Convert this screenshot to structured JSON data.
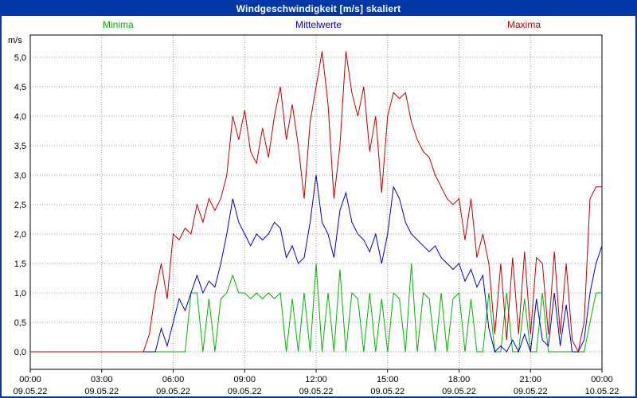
{
  "window": {
    "title": "Windgeschwindigkeit [m/s] skaliert"
  },
  "colors": {
    "frame_blue": "#0039a6",
    "titlebar_bg": "#0039a6",
    "title_text": "#ffffff",
    "grid": "#999999",
    "axis": "#000000",
    "minima": "#00b400",
    "mittelwerte": "#0000c8",
    "maxima": "#c00000"
  },
  "chart_data": {
    "type": "line",
    "title": "Windgeschwindigkeit [m/s] skaliert",
    "ylabel": "m/s",
    "xlabel": "",
    "ylim": [
      0,
      5.4
    ],
    "xlim_hours": [
      0,
      24
    ],
    "grid": true,
    "legend_position": "top",
    "x_step_hours": 0.25,
    "y_ticks": [
      {
        "v": 0.0,
        "label": "0,0"
      },
      {
        "v": 0.5,
        "label": "0,5"
      },
      {
        "v": 1.0,
        "label": "1,0"
      },
      {
        "v": 1.5,
        "label": "1,5"
      },
      {
        "v": 2.0,
        "label": "2,0"
      },
      {
        "v": 2.5,
        "label": "2,5"
      },
      {
        "v": 3.0,
        "label": "3,0"
      },
      {
        "v": 3.5,
        "label": "3,5"
      },
      {
        "v": 4.0,
        "label": "4,0"
      },
      {
        "v": 4.5,
        "label": "4,5"
      },
      {
        "v": 5.0,
        "label": "5,0"
      }
    ],
    "x_ticks": [
      {
        "h": 0,
        "time": "00:00",
        "date": "09.05.22"
      },
      {
        "h": 3,
        "time": "03:00",
        "date": "09.05.22"
      },
      {
        "h": 6,
        "time": "06:00",
        "date": "09.05.22"
      },
      {
        "h": 9,
        "time": "09:00",
        "date": "09.05.22"
      },
      {
        "h": 12,
        "time": "12:00",
        "date": "09.05.22"
      },
      {
        "h": 15,
        "time": "15:00",
        "date": "09.05.22"
      },
      {
        "h": 18,
        "time": "18:00",
        "date": "09.05.22"
      },
      {
        "h": 21,
        "time": "21:00",
        "date": "09.05.22"
      },
      {
        "h": 24,
        "time": "00:00",
        "date": "10.05.22"
      }
    ],
    "series": [
      {
        "name": "Minima",
        "color": "#00b400",
        "values": [
          0,
          0,
          0,
          0,
          0,
          0,
          0,
          0,
          0,
          0,
          0,
          0,
          0,
          0,
          0,
          0,
          0,
          0,
          0,
          0,
          0,
          0,
          0,
          0,
          0,
          0,
          0,
          1.0,
          1.0,
          0,
          0.9,
          0,
          0.9,
          1.0,
          1.3,
          1.0,
          1.0,
          0.9,
          1.0,
          0.9,
          1.0,
          0.9,
          1.0,
          0,
          0.9,
          0,
          1.0,
          0,
          1.5,
          0,
          1.0,
          0,
          1.4,
          0,
          1.0,
          0.9,
          0,
          1.0,
          0,
          0.9,
          0,
          1.0,
          0.9,
          0,
          1.5,
          0,
          1.0,
          0.9,
          0,
          1.0,
          0,
          0.9,
          1.0,
          0,
          0.9,
          0,
          0,
          1.0,
          0,
          0,
          1.0,
          0,
          0,
          0.9,
          0,
          0,
          1.0,
          0,
          0,
          0,
          0,
          0,
          0,
          0,
          0.5,
          1.0,
          1.0
        ]
      },
      {
        "name": "Mittelwerte",
        "color": "#0000c8",
        "values": [
          0,
          0,
          0,
          0,
          0,
          0,
          0,
          0,
          0,
          0,
          0,
          0,
          0,
          0,
          0,
          0,
          0,
          0,
          0,
          0,
          0,
          0,
          0.4,
          0.1,
          0.5,
          0.9,
          0.7,
          1.0,
          1.3,
          1.0,
          1.2,
          1.1,
          1.5,
          2.0,
          2.6,
          2.2,
          2.0,
          1.8,
          2.0,
          1.9,
          2.0,
          2.2,
          2.1,
          1.6,
          1.8,
          1.5,
          1.6,
          2.2,
          3.0,
          2.2,
          2.0,
          1.6,
          2.4,
          2.7,
          2.2,
          2.0,
          1.9,
          1.7,
          2.0,
          1.5,
          2.0,
          2.8,
          2.6,
          2.2,
          2.0,
          1.9,
          1.8,
          1.7,
          1.8,
          1.6,
          1.5,
          1.4,
          1.5,
          1.2,
          1.4,
          1.1,
          1.3,
          0.4,
          0,
          0.1,
          0,
          0.2,
          0,
          0.3,
          0,
          0.9,
          0.2,
          0.1,
          1.0,
          0.1,
          0.8,
          0,
          0,
          0.2,
          1.0,
          1.5,
          1.8
        ]
      },
      {
        "name": "Maxima",
        "color": "#c00000",
        "values": [
          0,
          0,
          0,
          0,
          0,
          0,
          0,
          0,
          0,
          0,
          0,
          0,
          0,
          0,
          0,
          0,
          0,
          0,
          0,
          0,
          0.3,
          1.0,
          1.5,
          0.9,
          2.0,
          1.9,
          2.1,
          2.0,
          2.5,
          2.2,
          2.6,
          2.4,
          2.6,
          3.0,
          4.0,
          3.6,
          4.1,
          3.4,
          3.2,
          3.8,
          3.3,
          4.0,
          4.5,
          3.6,
          4.2,
          3.5,
          2.6,
          3.9,
          4.5,
          5.1,
          4.2,
          2.6,
          3.5,
          5.1,
          4.4,
          4.0,
          4.5,
          3.4,
          4.0,
          2.7,
          4.0,
          4.4,
          4.3,
          4.4,
          3.9,
          3.6,
          3.4,
          3.3,
          3.0,
          2.8,
          2.6,
          2.5,
          2.6,
          1.9,
          2.6,
          1.6,
          2.0,
          1.5,
          0.3,
          1.5,
          0.2,
          1.6,
          0.3,
          1.7,
          0.3,
          1.6,
          1.5,
          0.3,
          1.7,
          0.3,
          1.5,
          0.2,
          0.0,
          0.5,
          2.6,
          2.8,
          2.8
        ]
      }
    ]
  }
}
